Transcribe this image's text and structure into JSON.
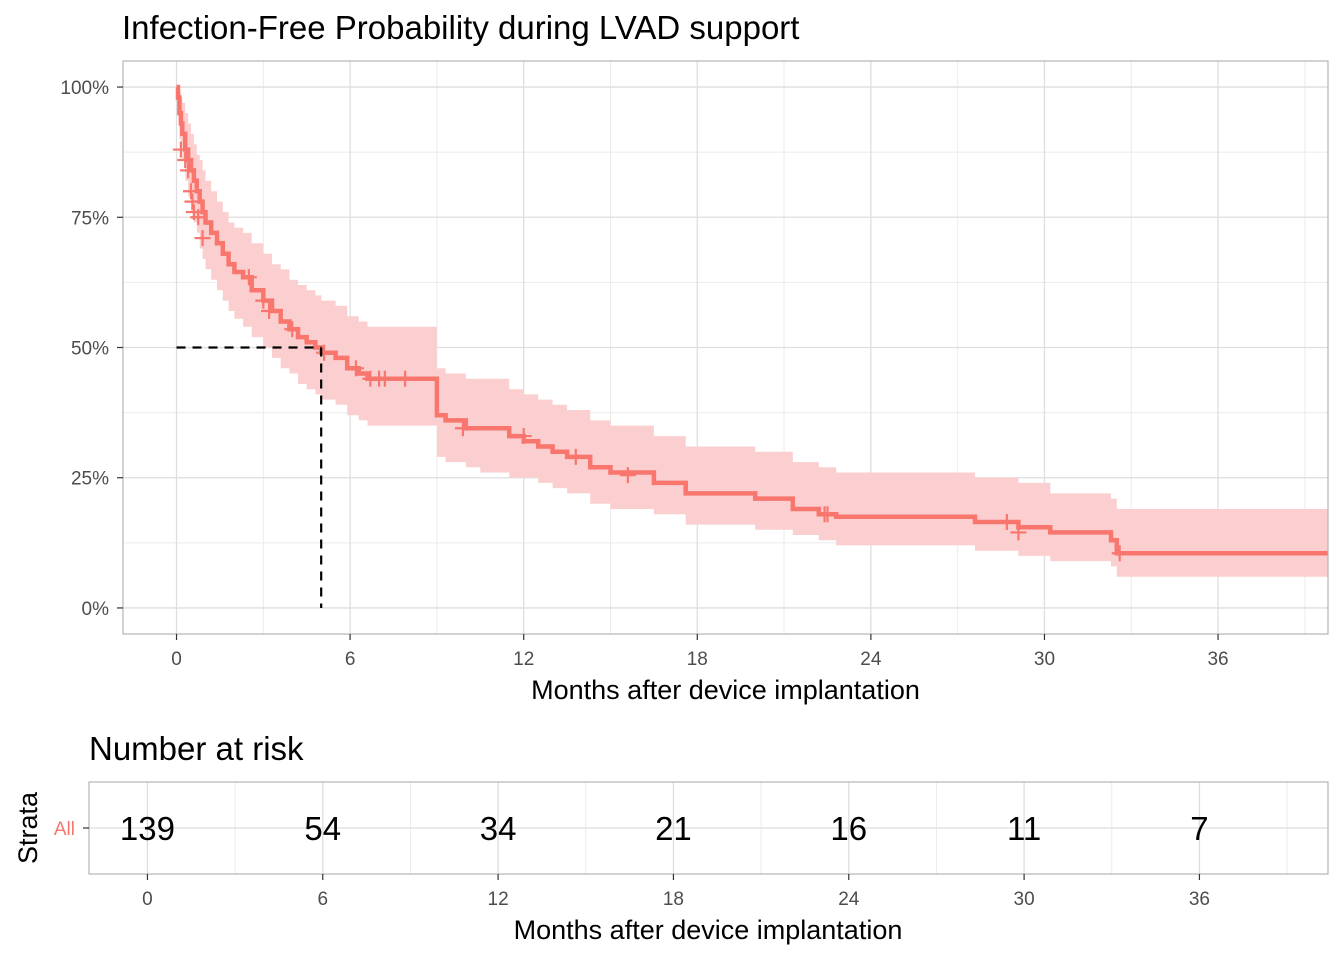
{
  "chart_data": [
    {
      "type": "line",
      "subtype": "kaplan-meier",
      "title": "Infection-Free Probability during LVAD support",
      "xlabel": "Months after device implantation",
      "ylabel": "",
      "xlim": [
        -1.85,
        39.8
      ],
      "ylim": [
        -0.05,
        1.05
      ],
      "x_ticks": [
        0,
        6,
        12,
        18,
        24,
        30,
        36
      ],
      "x_tick_labels": [
        "0",
        "6",
        "12",
        "18",
        "24",
        "30",
        "36"
      ],
      "y_ticks": [
        0,
        0.25,
        0.5,
        0.75,
        1.0
      ],
      "y_tick_labels": [
        "0%",
        "25%",
        "50%",
        "75%",
        "100%"
      ],
      "grid": true,
      "legend": "none",
      "color": "#F8766D",
      "band_color": "#FBCFCF",
      "median_survival": 5.0,
      "median_level": 0.5,
      "series": [
        {
          "x": [
            0,
            0.05,
            0.1,
            0.15,
            0.2,
            0.3,
            0.4,
            0.5,
            0.6,
            0.7,
            0.8,
            0.9,
            1.0,
            1.2,
            1.4,
            1.6,
            1.8,
            2.0,
            2.3,
            2.6,
            3.0,
            3.3,
            3.6,
            3.9,
            4.2,
            4.5,
            4.8,
            5.0,
            5.5,
            5.9,
            6.3,
            6.6,
            7.0,
            9.0,
            9.3,
            10.0,
            10.5,
            11.5,
            12.0,
            12.5,
            13.0,
            13.5,
            14.3,
            15.0,
            16.5,
            17.6,
            20.0,
            21.3,
            22.2,
            22.8,
            27.6,
            29.1,
            30.2,
            32.3,
            32.5,
            39.8
          ],
          "y": [
            1.0,
            0.98,
            0.95,
            0.93,
            0.91,
            0.88,
            0.86,
            0.84,
            0.82,
            0.8,
            0.78,
            0.76,
            0.74,
            0.72,
            0.7,
            0.68,
            0.66,
            0.645,
            0.635,
            0.61,
            0.59,
            0.57,
            0.55,
            0.535,
            0.52,
            0.51,
            0.5,
            0.49,
            0.48,
            0.46,
            0.45,
            0.44,
            0.44,
            0.37,
            0.36,
            0.345,
            0.345,
            0.33,
            0.32,
            0.31,
            0.3,
            0.29,
            0.27,
            0.26,
            0.24,
            0.22,
            0.21,
            0.19,
            0.18,
            0.175,
            0.165,
            0.155,
            0.145,
            0.13,
            0.105,
            0.105
          ],
          "lower": [
            1.0,
            0.95,
            0.9,
            0.88,
            0.86,
            0.82,
            0.79,
            0.76,
            0.74,
            0.72,
            0.69,
            0.67,
            0.65,
            0.63,
            0.61,
            0.59,
            0.57,
            0.555,
            0.54,
            0.52,
            0.5,
            0.48,
            0.46,
            0.45,
            0.43,
            0.42,
            0.41,
            0.4,
            0.39,
            0.37,
            0.36,
            0.35,
            0.35,
            0.29,
            0.28,
            0.27,
            0.26,
            0.25,
            0.25,
            0.24,
            0.23,
            0.22,
            0.2,
            0.19,
            0.18,
            0.16,
            0.15,
            0.14,
            0.13,
            0.12,
            0.11,
            0.1,
            0.09,
            0.08,
            0.06,
            0.06
          ],
          "upper": [
            1.0,
            1.0,
            0.99,
            0.98,
            0.97,
            0.95,
            0.93,
            0.91,
            0.89,
            0.87,
            0.86,
            0.84,
            0.82,
            0.8,
            0.78,
            0.76,
            0.74,
            0.73,
            0.72,
            0.7,
            0.68,
            0.66,
            0.65,
            0.63,
            0.62,
            0.61,
            0.6,
            0.59,
            0.58,
            0.56,
            0.55,
            0.54,
            0.54,
            0.46,
            0.45,
            0.44,
            0.44,
            0.42,
            0.41,
            0.4,
            0.39,
            0.38,
            0.36,
            0.35,
            0.33,
            0.31,
            0.3,
            0.28,
            0.27,
            0.26,
            0.25,
            0.24,
            0.22,
            0.21,
            0.19,
            0.19
          ]
        }
      ],
      "censor_marks": [
        {
          "x": 0.15,
          "y": 0.88
        },
        {
          "x": 0.3,
          "y": 0.86
        },
        {
          "x": 0.4,
          "y": 0.84
        },
        {
          "x": 0.5,
          "y": 0.8
        },
        {
          "x": 0.55,
          "y": 0.78
        },
        {
          "x": 0.6,
          "y": 0.76
        },
        {
          "x": 0.75,
          "y": 0.75
        },
        {
          "x": 0.9,
          "y": 0.71
        },
        {
          "x": 2.5,
          "y": 0.635
        },
        {
          "x": 3.0,
          "y": 0.59
        },
        {
          "x": 3.2,
          "y": 0.57
        },
        {
          "x": 4.0,
          "y": 0.535
        },
        {
          "x": 5.1,
          "y": 0.49
        },
        {
          "x": 6.2,
          "y": 0.46
        },
        {
          "x": 6.7,
          "y": 0.44
        },
        {
          "x": 7.0,
          "y": 0.44
        },
        {
          "x": 7.2,
          "y": 0.44
        },
        {
          "x": 7.9,
          "y": 0.44
        },
        {
          "x": 9.9,
          "y": 0.345
        },
        {
          "x": 12.0,
          "y": 0.33
        },
        {
          "x": 13.8,
          "y": 0.29
        },
        {
          "x": 15.6,
          "y": 0.255
        },
        {
          "x": 22.4,
          "y": 0.18
        },
        {
          "x": 22.5,
          "y": 0.18
        },
        {
          "x": 28.7,
          "y": 0.165
        },
        {
          "x": 29.1,
          "y": 0.145
        },
        {
          "x": 32.6,
          "y": 0.105
        }
      ]
    },
    {
      "type": "table",
      "title": "Number at risk",
      "xlabel": "Months after device implantation",
      "ylabel": "Strata",
      "xlim": [
        -2.0,
        40.4
      ],
      "x_ticks": [
        0,
        6,
        12,
        18,
        24,
        30,
        36
      ],
      "x_tick_labels": [
        "0",
        "6",
        "12",
        "18",
        "24",
        "30",
        "36"
      ],
      "strata": [
        "All"
      ],
      "strata_color": "#F8766D",
      "grid": true,
      "rows": [
        {
          "name": "All",
          "values": [
            "139",
            "54",
            "34",
            "21",
            "16",
            "11",
            "7"
          ]
        }
      ]
    }
  ]
}
